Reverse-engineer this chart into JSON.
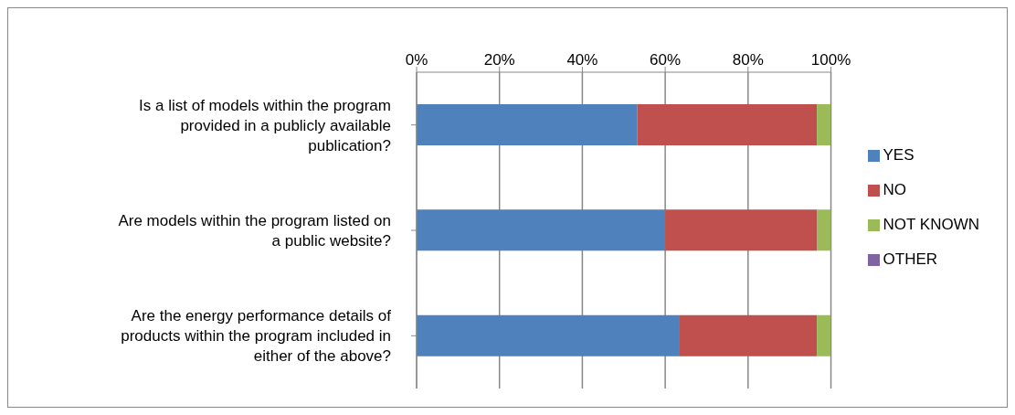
{
  "chart_data": {
    "type": "bar",
    "orientation": "horizontal",
    "stacked": true,
    "categories": [
      "Is a list of models within the program provided in a publicly available publication?",
      "Are models within the program listed on a public website?",
      "Are the energy performance details of products within the program included in either of the above?"
    ],
    "series": [
      {
        "name": "YES",
        "color": "#4f81bd",
        "values": [
          53.3,
          60,
          63.3
        ]
      },
      {
        "name": "NO",
        "color": "#c0504d",
        "values": [
          43.3,
          36.7,
          33.3
        ]
      },
      {
        "name": "NOT KNOWN",
        "color": "#9bbb59",
        "values": [
          3.3,
          3.3,
          3.3
        ]
      },
      {
        "name": "OTHER",
        "color": "#8064a2",
        "values": [
          0,
          0,
          0
        ]
      }
    ],
    "xlim": [
      0,
      100
    ],
    "xticks": [
      {
        "value": 0,
        "label": "0%"
      },
      {
        "value": 20,
        "label": "20%"
      },
      {
        "value": 40,
        "label": "40%"
      },
      {
        "value": 60,
        "label": "60%"
      },
      {
        "value": 80,
        "label": "80%"
      },
      {
        "value": 100,
        "label": "100%"
      }
    ],
    "grid": "x",
    "legend": "right"
  }
}
